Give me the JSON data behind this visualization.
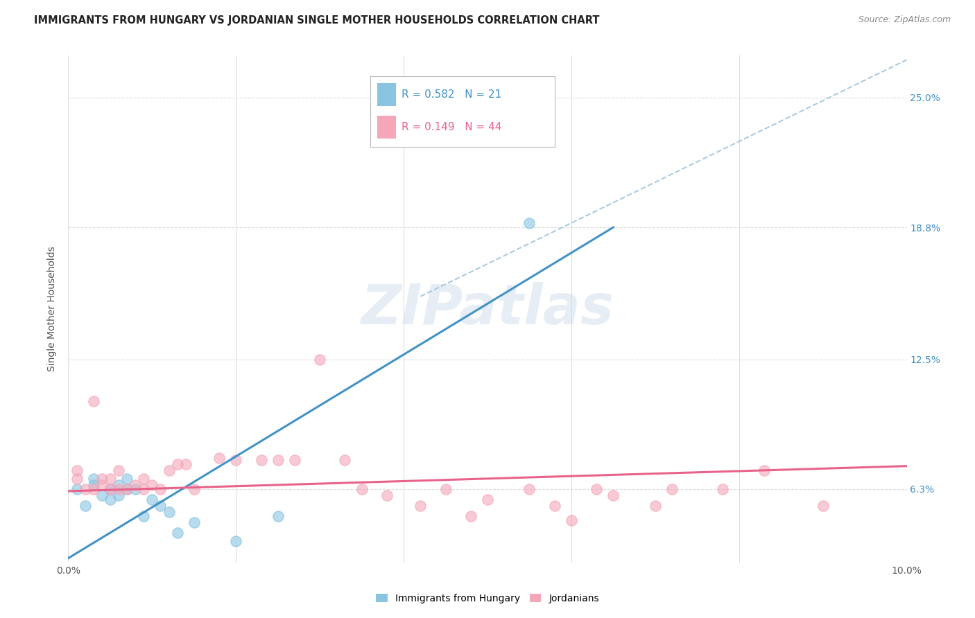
{
  "title": "IMMIGRANTS FROM HUNGARY VS JORDANIAN SINGLE MOTHER HOUSEHOLDS CORRELATION CHART",
  "source": "Source: ZipAtlas.com",
  "ylabel": "Single Mother Households",
  "legend_blue_R": "0.582",
  "legend_blue_N": "21",
  "legend_pink_R": "0.149",
  "legend_pink_N": "44",
  "ytick_labels": [
    "6.3%",
    "12.5%",
    "18.8%",
    "25.0%"
  ],
  "ytick_values": [
    0.063,
    0.125,
    0.188,
    0.25
  ],
  "xlim": [
    0.0,
    0.1
  ],
  "ylim": [
    0.028,
    0.27
  ],
  "blue_color": "#89c4e1",
  "pink_color": "#f4a7b9",
  "blue_line_color": "#4292c6",
  "pink_line_color": "#e8628a",
  "dashed_line_color": "#aaccdd",
  "watermark": "ZIPatlas",
  "blue_scatter_x": [
    0.001,
    0.002,
    0.003,
    0.003,
    0.004,
    0.005,
    0.005,
    0.006,
    0.006,
    0.007,
    0.007,
    0.008,
    0.009,
    0.01,
    0.011,
    0.012,
    0.013,
    0.015,
    0.02,
    0.025,
    0.055
  ],
  "blue_scatter_y": [
    0.063,
    0.055,
    0.065,
    0.068,
    0.06,
    0.063,
    0.058,
    0.065,
    0.06,
    0.063,
    0.068,
    0.063,
    0.05,
    0.058,
    0.055,
    0.052,
    0.042,
    0.047,
    0.038,
    0.05,
    0.19
  ],
  "pink_scatter_x": [
    0.001,
    0.001,
    0.002,
    0.003,
    0.003,
    0.004,
    0.004,
    0.005,
    0.005,
    0.006,
    0.006,
    0.007,
    0.008,
    0.009,
    0.009,
    0.01,
    0.011,
    0.012,
    0.013,
    0.014,
    0.015,
    0.018,
    0.02,
    0.023,
    0.025,
    0.027,
    0.03,
    0.033,
    0.035,
    0.038,
    0.042,
    0.045,
    0.048,
    0.05,
    0.055,
    0.058,
    0.06,
    0.063,
    0.065,
    0.07,
    0.072,
    0.078,
    0.083,
    0.09
  ],
  "pink_scatter_y": [
    0.068,
    0.072,
    0.063,
    0.105,
    0.063,
    0.068,
    0.065,
    0.063,
    0.068,
    0.063,
    0.072,
    0.063,
    0.065,
    0.068,
    0.063,
    0.065,
    0.063,
    0.072,
    0.075,
    0.075,
    0.063,
    0.078,
    0.077,
    0.077,
    0.077,
    0.077,
    0.125,
    0.077,
    0.063,
    0.06,
    0.055,
    0.063,
    0.05,
    0.058,
    0.063,
    0.055,
    0.048,
    0.063,
    0.06,
    0.055,
    0.063,
    0.063,
    0.072,
    0.055
  ],
  "blue_line_x": [
    0.0,
    0.065
  ],
  "blue_line_y": [
    0.03,
    0.188
  ],
  "pink_line_x": [
    0.0,
    0.1
  ],
  "pink_line_y": [
    0.062,
    0.074
  ],
  "dashed_line_x": [
    0.042,
    0.1
  ],
  "dashed_line_y": [
    0.155,
    0.268
  ],
  "xtick_positions": [
    0.0,
    0.1
  ],
  "xtick_labels": [
    "0.0%",
    "10.0%"
  ],
  "grid_xtick_positions": [
    0.0,
    0.02,
    0.04,
    0.06,
    0.08,
    0.1
  ]
}
